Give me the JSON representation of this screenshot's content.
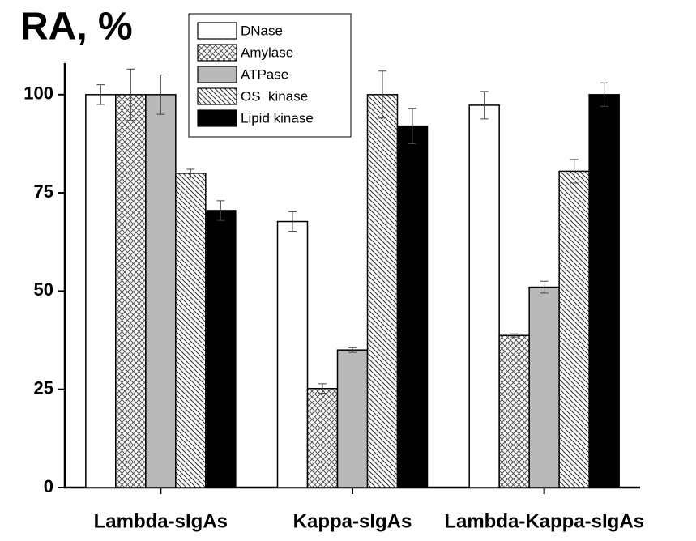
{
  "chart_data": {
    "type": "bar",
    "title": "RA, %",
    "categories": [
      "Lambda-sIgAs",
      "Kappa-sIgAs",
      "Lambda-Kappa-sIgAs"
    ],
    "series": [
      {
        "name": "DNase",
        "color": "#ffffff",
        "values": [
          100,
          67.7,
          97.3
        ],
        "errors": [
          2.5,
          2.5,
          3.5
        ]
      },
      {
        "name": "Amylase",
        "color": "#ffffff",
        "hatch": "cross",
        "values": [
          100,
          25.2,
          38.7
        ],
        "errors": [
          6.5,
          1.2,
          0.4
        ]
      },
      {
        "name": "ATPase",
        "color": "#b9b9b9",
        "values": [
          100,
          35,
          51
        ],
        "errors": [
          5,
          0.6,
          1.5
        ]
      },
      {
        "name": "OS  kinase",
        "color": "#ffffff",
        "hatch": "diagonal",
        "values": [
          80,
          100,
          80.5
        ],
        "errors": [
          1,
          6,
          3
        ]
      },
      {
        "name": "Lipid kinase",
        "color": "#000000",
        "values": [
          70.5,
          92,
          100
        ],
        "errors": [
          2.5,
          4.5,
          3
        ]
      }
    ],
    "ylim": [
      0,
      108
    ],
    "yticks": [
      0,
      25,
      50,
      75,
      100
    ]
  }
}
